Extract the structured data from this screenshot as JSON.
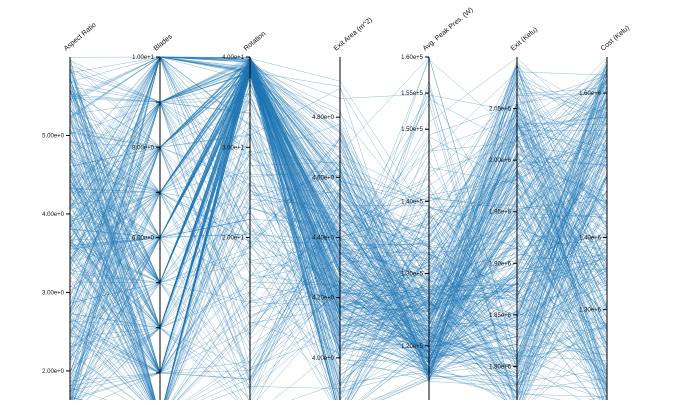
{
  "chart_data": {
    "type": "parallel-coordinates",
    "title": "",
    "line_color": "#1f77b4",
    "line_count": 400,
    "axes": [
      {
        "label": "Aspect Ratio",
        "range": [
          1.4,
          6.0
        ],
        "ticks": [
          2.0,
          3.0,
          4.0,
          5.0
        ],
        "tick_labels": [
          "2.00e+0",
          "3.00e+0",
          "4.00e+0",
          "5.00e+0"
        ]
      },
      {
        "label": "Blades",
        "range": [
          2,
          10
        ],
        "ticks": [
          2,
          3,
          4,
          5,
          6,
          7,
          8,
          9,
          10
        ],
        "tick_labels": [
          "2.00e+0",
          "",
          "",
          "",
          "6.00e+0",
          "",
          "8.00e+0",
          "",
          "1.00e+1"
        ],
        "discrete": true
      },
      {
        "label": "Rotation",
        "range": [
          0,
          40
        ],
        "ticks": [
          20,
          30,
          40
        ],
        "tick_labels": [
          "2.00e+1",
          "3.00e+1",
          "4.00e+1"
        ]
      },
      {
        "label": "Exit Area (m^2)",
        "range": [
          3.8,
          5.0
        ],
        "ticks": [
          4.0,
          4.2,
          4.4,
          4.6,
          4.8
        ],
        "tick_labels": [
          "4.00e+0",
          "4.20e+0",
          "4.40e+0",
          "4.60e+0",
          "4.80e+0"
        ]
      },
      {
        "label": "Avg. Peak Pres. (W)",
        "range": [
          110000.0,
          160000.0
        ],
        "ticks": [
          120000.0,
          130000.0,
          140000.0,
          150000.0,
          155000.0,
          160000.0
        ],
        "tick_labels": [
          "1.20e+5",
          "1.30e+5",
          "1.40e+5",
          "1.50e+5",
          "1.55e+5",
          "1.60e+5"
        ]
      },
      {
        "label": "Exit (Kelu)",
        "range": [
          1750000.0,
          2100000.0
        ],
        "ticks": [
          1800000.0,
          1850000.0,
          1900000.0,
          1950000.0,
          2000000.0,
          2050000.0
        ],
        "tick_labels": [
          "1.80e+6",
          "1.85e+6",
          "1.90e+6",
          "1.95e+6",
          "2.00e+6",
          "2.05e+6"
        ]
      },
      {
        "label": "Cost (Kelu)",
        "range": [
          1150000.0,
          1650000.0
        ],
        "ticks": [
          1300000.0,
          1400000.0,
          1600000.0
        ],
        "tick_labels": [
          "1.30e+6",
          "1.40e+6",
          "1.60e+6"
        ]
      }
    ]
  }
}
